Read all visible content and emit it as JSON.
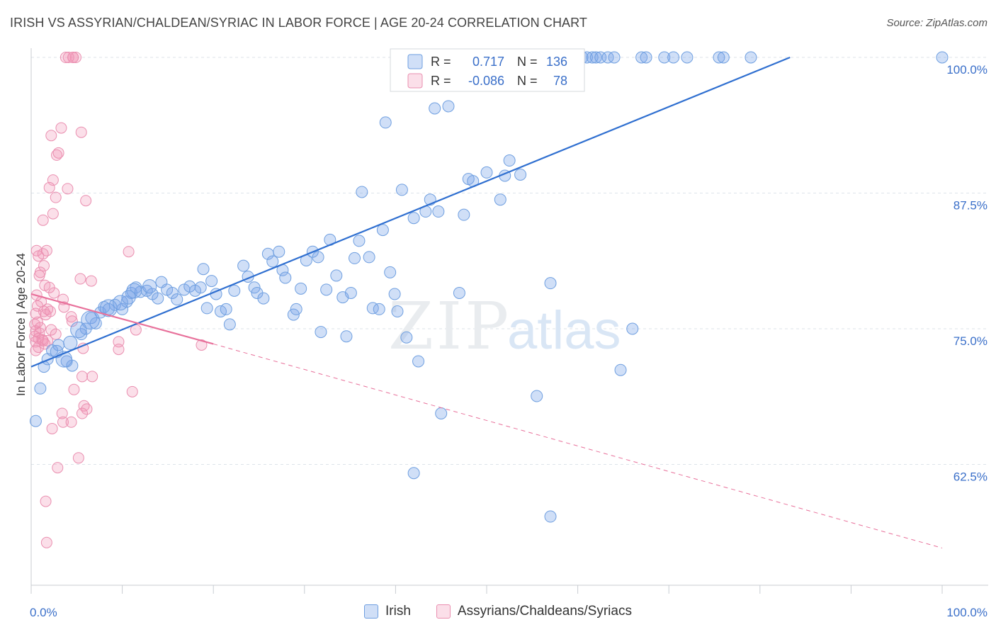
{
  "title": "IRISH VS ASSYRIAN/CHALDEAN/SYRIAC IN LABOR FORCE | AGE 20-24 CORRELATION CHART",
  "source": "Source: ZipAtlas.com",
  "watermark": {
    "zip": "ZIP",
    "atlas": "atlas"
  },
  "colors": {
    "irish_fill": "rgba(120,164,232,0.35)",
    "irish_stroke": "#6f9fe0",
    "irish_line": "#2f6fd0",
    "assyrian_fill": "rgba(243,150,182,0.30)",
    "assyrian_stroke": "#ea8fb0",
    "assyrian_line": "#e8719b",
    "tick_text": "#3a6fc9",
    "grid": "#dde3ea"
  },
  "legend": {
    "r_label": "R =",
    "n_label": "N =",
    "irish": {
      "r": "0.717",
      "n": "136"
    },
    "assyrian": {
      "r": "-0.086",
      "n": "78"
    }
  },
  "bottom_legend": {
    "irish": "Irish",
    "assyrian": "Assyrians/Chaldeans/Syriacs"
  },
  "chart_data": {
    "type": "scatter",
    "title": "IRISH VS ASSYRIAN/CHALDEAN/SYRIAC IN LABOR FORCE | AGE 20-24 CORRELATION CHART",
    "xlabel": "",
    "ylabel": "In Labor Force | Age 20-24",
    "xlim": [
      0,
      100
    ],
    "ylim": [
      52.5,
      101.5
    ],
    "x_tick_labels": [
      "0.0%",
      "100.0%"
    ],
    "y_ticks": [
      62.5,
      75.0,
      87.5,
      100.0
    ],
    "y_tick_labels": [
      "62.5%",
      "75.0%",
      "87.5%",
      "100.0%"
    ],
    "grid": true,
    "legend_position": "top-center",
    "series": [
      {
        "name": "Irish",
        "r": 0.717,
        "n": 136,
        "trend": {
          "x": [
            0.0,
            83.3
          ],
          "y": [
            71.5,
            100.0
          ]
        },
        "points": [
          {
            "x": 0.5,
            "y": 66.5,
            "s": 1
          },
          {
            "x": 1.0,
            "y": 69.5,
            "s": 1
          },
          {
            "x": 1.4,
            "y": 71.5,
            "s": 1
          },
          {
            "x": 1.8,
            "y": 72.2,
            "s": 1
          },
          {
            "x": 2.3,
            "y": 73.0,
            "s": 1
          },
          {
            "x": 3.0,
            "y": 73.5,
            "s": 1
          },
          {
            "x": 3.9,
            "y": 72.0,
            "s": 1
          },
          {
            "x": 4.5,
            "y": 71.6,
            "s": 1
          },
          {
            "x": 5.5,
            "y": 74.5,
            "s": 1
          },
          {
            "x": 6.0,
            "y": 75.0,
            "s": 1
          },
          {
            "x": 6.6,
            "y": 76.0,
            "s": 1
          },
          {
            "x": 7.1,
            "y": 75.5,
            "s": 1
          },
          {
            "x": 7.6,
            "y": 76.5,
            "s": 1
          },
          {
            "x": 8.0,
            "y": 77.0,
            "s": 1
          },
          {
            "x": 8.5,
            "y": 76.8,
            "s": 1
          },
          {
            "x": 9.2,
            "y": 77.2,
            "s": 1
          },
          {
            "x": 10.0,
            "y": 76.8,
            "s": 1
          },
          {
            "x": 10.5,
            "y": 77.5,
            "s": 1
          },
          {
            "x": 11.0,
            "y": 78.3,
            "s": 1
          },
          {
            "x": 11.5,
            "y": 78.8,
            "s": 1
          },
          {
            "x": 12.0,
            "y": 78.4,
            "s": 1
          },
          {
            "x": 12.7,
            "y": 78.5,
            "s": 1
          },
          {
            "x": 13.3,
            "y": 78.2,
            "s": 1
          },
          {
            "x": 13.9,
            "y": 77.8,
            "s": 1
          },
          {
            "x": 14.3,
            "y": 79.3,
            "s": 1
          },
          {
            "x": 14.9,
            "y": 78.6,
            "s": 1
          },
          {
            "x": 15.5,
            "y": 78.3,
            "s": 1
          },
          {
            "x": 16.0,
            "y": 77.7,
            "s": 1
          },
          {
            "x": 16.8,
            "y": 78.6,
            "s": 1
          },
          {
            "x": 17.4,
            "y": 78.9,
            "s": 1
          },
          {
            "x": 18.0,
            "y": 78.5,
            "s": 1
          },
          {
            "x": 18.6,
            "y": 78.8,
            "s": 1
          },
          {
            "x": 18.9,
            "y": 80.5,
            "s": 1
          },
          {
            "x": 19.3,
            "y": 76.9,
            "s": 1
          },
          {
            "x": 19.8,
            "y": 79.4,
            "s": 1
          },
          {
            "x": 20.3,
            "y": 78.2,
            "s": 1
          },
          {
            "x": 20.8,
            "y": 76.6,
            "s": 1
          },
          {
            "x": 21.4,
            "y": 76.8,
            "s": 1
          },
          {
            "x": 21.8,
            "y": 75.4,
            "s": 1
          },
          {
            "x": 22.3,
            "y": 78.5,
            "s": 1
          },
          {
            "x": 23.3,
            "y": 80.8,
            "s": 1
          },
          {
            "x": 23.8,
            "y": 79.8,
            "s": 1
          },
          {
            "x": 24.5,
            "y": 78.8,
            "s": 1
          },
          {
            "x": 24.8,
            "y": 78.3,
            "s": 1
          },
          {
            "x": 25.5,
            "y": 77.8,
            "s": 1
          },
          {
            "x": 26.0,
            "y": 81.9,
            "s": 1
          },
          {
            "x": 26.5,
            "y": 81.2,
            "s": 1
          },
          {
            "x": 27.2,
            "y": 82.1,
            "s": 1
          },
          {
            "x": 27.6,
            "y": 80.4,
            "s": 1
          },
          {
            "x": 27.9,
            "y": 79.7,
            "s": 1
          },
          {
            "x": 28.8,
            "y": 76.3,
            "s": 1
          },
          {
            "x": 29.1,
            "y": 76.8,
            "s": 1
          },
          {
            "x": 29.6,
            "y": 78.7,
            "s": 1
          },
          {
            "x": 30.2,
            "y": 81.3,
            "s": 1
          },
          {
            "x": 30.9,
            "y": 82.1,
            "s": 1
          },
          {
            "x": 31.5,
            "y": 81.6,
            "s": 1
          },
          {
            "x": 31.8,
            "y": 74.7,
            "s": 1
          },
          {
            "x": 32.4,
            "y": 78.6,
            "s": 1
          },
          {
            "x": 32.8,
            "y": 83.2,
            "s": 1
          },
          {
            "x": 33.5,
            "y": 79.9,
            "s": 1
          },
          {
            "x": 34.2,
            "y": 77.9,
            "s": 1
          },
          {
            "x": 34.6,
            "y": 74.3,
            "s": 1
          },
          {
            "x": 35.1,
            "y": 78.3,
            "s": 1
          },
          {
            "x": 35.5,
            "y": 81.5,
            "s": 1
          },
          {
            "x": 36.0,
            "y": 83.1,
            "s": 1
          },
          {
            "x": 36.3,
            "y": 87.6,
            "s": 1
          },
          {
            "x": 37.1,
            "y": 81.6,
            "s": 1
          },
          {
            "x": 37.5,
            "y": 76.9,
            "s": 1
          },
          {
            "x": 38.2,
            "y": 76.8,
            "s": 1
          },
          {
            "x": 38.6,
            "y": 84.1,
            "s": 1
          },
          {
            "x": 38.9,
            "y": 94.0,
            "s": 1
          },
          {
            "x": 39.4,
            "y": 80.2,
            "s": 1
          },
          {
            "x": 39.9,
            "y": 78.2,
            "s": 1
          },
          {
            "x": 40.2,
            "y": 76.6,
            "s": 1
          },
          {
            "x": 40.7,
            "y": 87.8,
            "s": 1
          },
          {
            "x": 41.2,
            "y": 74.2,
            "s": 1
          },
          {
            "x": 42.0,
            "y": 85.2,
            "s": 1
          },
          {
            "x": 42.5,
            "y": 72.0,
            "s": 1
          },
          {
            "x": 43.3,
            "y": 85.8,
            "s": 1
          },
          {
            "x": 43.8,
            "y": 86.9,
            "s": 1
          },
          {
            "x": 44.7,
            "y": 85.8,
            "s": 1
          },
          {
            "x": 44.3,
            "y": 95.3,
            "s": 1
          },
          {
            "x": 45.0,
            "y": 67.2,
            "s": 1
          },
          {
            "x": 45.8,
            "y": 95.5,
            "s": 1
          },
          {
            "x": 47.0,
            "y": 78.3,
            "s": 1
          },
          {
            "x": 47.5,
            "y": 85.5,
            "s": 1
          },
          {
            "x": 48.0,
            "y": 88.8,
            "s": 1
          },
          {
            "x": 48.5,
            "y": 88.6,
            "s": 1
          },
          {
            "x": 49.5,
            "y": 100.0,
            "s": 1
          },
          {
            "x": 50.0,
            "y": 89.4,
            "s": 1
          },
          {
            "x": 50.8,
            "y": 99.0,
            "s": 1
          },
          {
            "x": 51.5,
            "y": 86.9,
            "s": 1
          },
          {
            "x": 52.0,
            "y": 89.1,
            "s": 1
          },
          {
            "x": 52.5,
            "y": 90.5,
            "s": 1
          },
          {
            "x": 53.7,
            "y": 89.2,
            "s": 1
          },
          {
            "x": 55.5,
            "y": 100.0,
            "s": 1
          },
          {
            "x": 55.5,
            "y": 68.8,
            "s": 1
          },
          {
            "x": 56.5,
            "y": 100.0,
            "s": 1
          },
          {
            "x": 57.0,
            "y": 79.2,
            "s": 1
          },
          {
            "x": 57.5,
            "y": 100.0,
            "s": 1
          },
          {
            "x": 58.0,
            "y": 97.4,
            "s": 1
          },
          {
            "x": 59.5,
            "y": 100.0,
            "s": 1
          },
          {
            "x": 60.5,
            "y": 100.0,
            "s": 1
          },
          {
            "x": 61.0,
            "y": 100.0,
            "s": 1
          },
          {
            "x": 61.6,
            "y": 100.0,
            "s": 1
          },
          {
            "x": 62.0,
            "y": 100.0,
            "s": 1
          },
          {
            "x": 62.5,
            "y": 100.0,
            "s": 1
          },
          {
            "x": 63.3,
            "y": 100.0,
            "s": 1
          },
          {
            "x": 64.0,
            "y": 100.0,
            "s": 1
          },
          {
            "x": 66.0,
            "y": 75.0,
            "s": 1
          },
          {
            "x": 67.0,
            "y": 100.0,
            "s": 1
          },
          {
            "x": 67.5,
            "y": 100.0,
            "s": 1
          },
          {
            "x": 69.5,
            "y": 100.0,
            "s": 1
          },
          {
            "x": 70.5,
            "y": 100.0,
            "s": 1
          },
          {
            "x": 72.0,
            "y": 100.0,
            "s": 1
          },
          {
            "x": 75.5,
            "y": 100.0,
            "s": 1
          },
          {
            "x": 76.0,
            "y": 100.0,
            "s": 1
          },
          {
            "x": 79.0,
            "y": 100.0,
            "s": 1
          },
          {
            "x": 42.0,
            "y": 61.7,
            "s": 1
          },
          {
            "x": 57.0,
            "y": 57.7,
            "s": 1
          },
          {
            "x": 64.7,
            "y": 71.2,
            "s": 1
          },
          {
            "x": 100.0,
            "y": 100.0,
            "s": 1
          },
          {
            "x": 6.5,
            "y": 75.8,
            "s": 1.6
          },
          {
            "x": 8.5,
            "y": 76.9,
            "s": 1.5
          },
          {
            "x": 5.2,
            "y": 74.9,
            "s": 1.4
          },
          {
            "x": 3.6,
            "y": 72.2,
            "s": 1.4
          },
          {
            "x": 9.8,
            "y": 77.4,
            "s": 1.3
          },
          {
            "x": 11.3,
            "y": 78.5,
            "s": 1.3
          },
          {
            "x": 13.0,
            "y": 78.9,
            "s": 1.2
          },
          {
            "x": 10.7,
            "y": 77.9,
            "s": 1.2
          },
          {
            "x": 4.3,
            "y": 73.7,
            "s": 1.2
          },
          {
            "x": 2.8,
            "y": 72.9,
            "s": 1.1
          }
        ]
      },
      {
        "name": "Assyrians/Chaldeans/Syriacs",
        "r": -0.086,
        "n": 78,
        "trend": {
          "x": [
            0.0,
            20.0
          ],
          "y": [
            78.2,
            73.6
          ]
        },
        "trend_extension": {
          "x": [
            20.0,
            100.0
          ],
          "y": [
            73.6,
            54.8
          ]
        },
        "points": [
          {
            "x": 3.8,
            "y": 100.0
          },
          {
            "x": 4.6,
            "y": 100.0
          },
          {
            "x": 4.9,
            "y": 100.0
          },
          {
            "x": 4.1,
            "y": 100.0
          },
          {
            "x": 3.3,
            "y": 93.5
          },
          {
            "x": 2.2,
            "y": 92.8
          },
          {
            "x": 5.5,
            "y": 93.1
          },
          {
            "x": 2.8,
            "y": 91.0
          },
          {
            "x": 3.0,
            "y": 91.2
          },
          {
            "x": 2.4,
            "y": 88.7
          },
          {
            "x": 2.0,
            "y": 88.0
          },
          {
            "x": 4.0,
            "y": 87.9
          },
          {
            "x": 6.0,
            "y": 86.8
          },
          {
            "x": 2.7,
            "y": 87.1
          },
          {
            "x": 2.4,
            "y": 85.6
          },
          {
            "x": 1.3,
            "y": 85.0
          },
          {
            "x": 0.6,
            "y": 82.2
          },
          {
            "x": 1.7,
            "y": 82.2
          },
          {
            "x": 1.3,
            "y": 81.9
          },
          {
            "x": 0.8,
            "y": 81.7
          },
          {
            "x": 10.7,
            "y": 82.1
          },
          {
            "x": 1.4,
            "y": 80.8
          },
          {
            "x": 1.0,
            "y": 80.2
          },
          {
            "x": 0.9,
            "y": 79.9
          },
          {
            "x": 5.4,
            "y": 79.6
          },
          {
            "x": 6.6,
            "y": 79.4
          },
          {
            "x": 1.5,
            "y": 79.0
          },
          {
            "x": 2.0,
            "y": 78.8
          },
          {
            "x": 2.5,
            "y": 78.3
          },
          {
            "x": 3.5,
            "y": 77.7
          },
          {
            "x": 1.1,
            "y": 77.5
          },
          {
            "x": 0.7,
            "y": 77.1
          },
          {
            "x": 1.8,
            "y": 76.8
          },
          {
            "x": 3.6,
            "y": 77.0
          },
          {
            "x": 1.4,
            "y": 76.6
          },
          {
            "x": 0.5,
            "y": 76.4
          },
          {
            "x": 1.6,
            "y": 76.3
          },
          {
            "x": 4.4,
            "y": 76.1
          },
          {
            "x": 4.5,
            "y": 75.7
          },
          {
            "x": 0.4,
            "y": 75.4
          },
          {
            "x": 1.0,
            "y": 75.1
          },
          {
            "x": 2.2,
            "y": 74.9
          },
          {
            "x": 0.5,
            "y": 74.8
          },
          {
            "x": 0.9,
            "y": 74.6
          },
          {
            "x": 2.7,
            "y": 74.5
          },
          {
            "x": 0.4,
            "y": 74.3
          },
          {
            "x": 0.8,
            "y": 74.1
          },
          {
            "x": 1.2,
            "y": 74.0
          },
          {
            "x": 1.8,
            "y": 73.9
          },
          {
            "x": 0.5,
            "y": 73.8
          },
          {
            "x": 1.5,
            "y": 73.6
          },
          {
            "x": 0.8,
            "y": 73.3
          },
          {
            "x": 0.5,
            "y": 73.0
          },
          {
            "x": 11.5,
            "y": 74.9
          },
          {
            "x": 9.6,
            "y": 73.8
          },
          {
            "x": 5.7,
            "y": 73.2
          },
          {
            "x": 9.6,
            "y": 73.1
          },
          {
            "x": 18.7,
            "y": 73.5
          },
          {
            "x": 6.7,
            "y": 70.6
          },
          {
            "x": 5.6,
            "y": 70.6
          },
          {
            "x": 4.7,
            "y": 69.4
          },
          {
            "x": 11.1,
            "y": 69.2
          },
          {
            "x": 5.8,
            "y": 67.9
          },
          {
            "x": 6.1,
            "y": 67.6
          },
          {
            "x": 5.6,
            "y": 67.2
          },
          {
            "x": 3.4,
            "y": 67.2
          },
          {
            "x": 3.5,
            "y": 66.4
          },
          {
            "x": 4.4,
            "y": 66.4
          },
          {
            "x": 2.3,
            "y": 65.8
          },
          {
            "x": 5.2,
            "y": 63.1
          },
          {
            "x": 2.9,
            "y": 62.2
          },
          {
            "x": 1.6,
            "y": 59.1
          },
          {
            "x": 1.7,
            "y": 55.3
          },
          {
            "x": 4.6,
            "y": 100.0
          },
          {
            "x": 2.1,
            "y": 76.6
          },
          {
            "x": 0.7,
            "y": 75.6
          },
          {
            "x": 1.3,
            "y": 73.9
          },
          {
            "x": 0.6,
            "y": 78.1
          }
        ]
      }
    ]
  }
}
